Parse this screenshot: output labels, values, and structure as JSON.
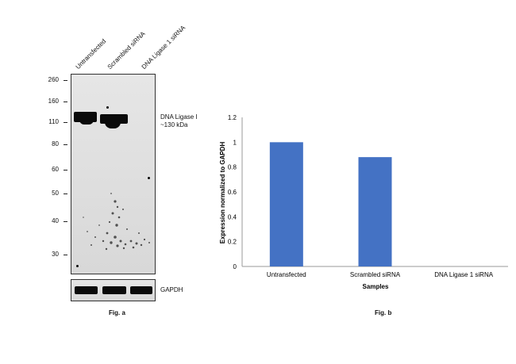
{
  "fig_a": {
    "lanes": [
      "Untransfected",
      "Scrambled siRNA",
      "DNA Ligase 1 siRNA"
    ],
    "mw_markers": [
      "260",
      "160",
      "110",
      "80",
      "60",
      "50",
      "40",
      "30"
    ],
    "band_label_line1": "DNA Ligase I",
    "band_label_line2": "~130 kDa",
    "loading_label": "GAPDH",
    "caption": "Fig. a"
  },
  "fig_b": {
    "caption": "Fig. b",
    "bar_color": "#4472C4"
  },
  "chart_data": {
    "type": "bar",
    "categories": [
      "Untransfected",
      "Scrambled siRNA",
      "DNA Ligase 1 siRNA"
    ],
    "values": [
      1.0,
      0.88,
      0
    ],
    "xlabel": "Samples",
    "ylabel": "Expression normalized to GAPDH",
    "ylim": [
      0,
      1.2
    ],
    "yticks": [
      "0",
      "0.2",
      "0.4",
      "0.6",
      "0.8",
      "1",
      "1.2"
    ],
    "grid": false,
    "legend": "none"
  }
}
